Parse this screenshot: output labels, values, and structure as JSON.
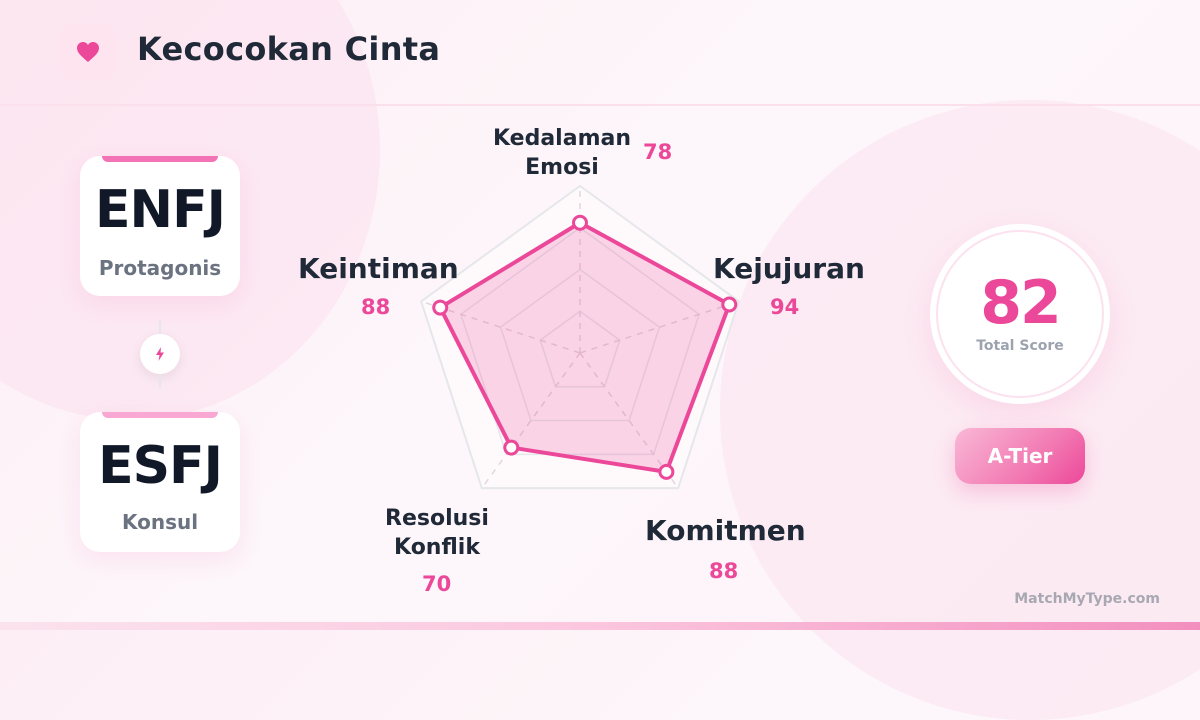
{
  "header": {
    "title": "Kecocokan Cinta",
    "icon": "heart-icon"
  },
  "types": [
    {
      "code": "ENFJ",
      "name": "Protagonis",
      "bar_color": "#f472b6"
    },
    {
      "code": "ESFJ",
      "name": "Konsul",
      "bar_color": "#f9a8d4"
    }
  ],
  "connector_icon": "lightning-icon",
  "chart_data": {
    "type": "radar",
    "axes": [
      "Kedalaman Emosi",
      "Kejujuran",
      "Komitmen",
      "Resolusi Konflik",
      "Keintiman"
    ],
    "values": [
      78,
      94,
      88,
      70,
      88
    ],
    "range": [
      0,
      100
    ],
    "grid_levels": 4,
    "series_color": "#ec4899"
  },
  "radar_labels": {
    "kedalaman": {
      "line1": "Kedalaman",
      "line2": "Emosi",
      "value": "78"
    },
    "kejujuran": {
      "label": "Kejujuran",
      "value": "94"
    },
    "komitmen": {
      "label": "Komitmen",
      "value": "88"
    },
    "resolusi": {
      "line1": "Resolusi",
      "line2": "Konflik",
      "value": "70"
    },
    "keintiman": {
      "label": "Keintiman",
      "value": "88"
    }
  },
  "score": {
    "value": "82",
    "caption": "Total Score"
  },
  "tier": {
    "label": "A-Tier"
  },
  "footer": {
    "brand": "MatchMyType.com"
  }
}
